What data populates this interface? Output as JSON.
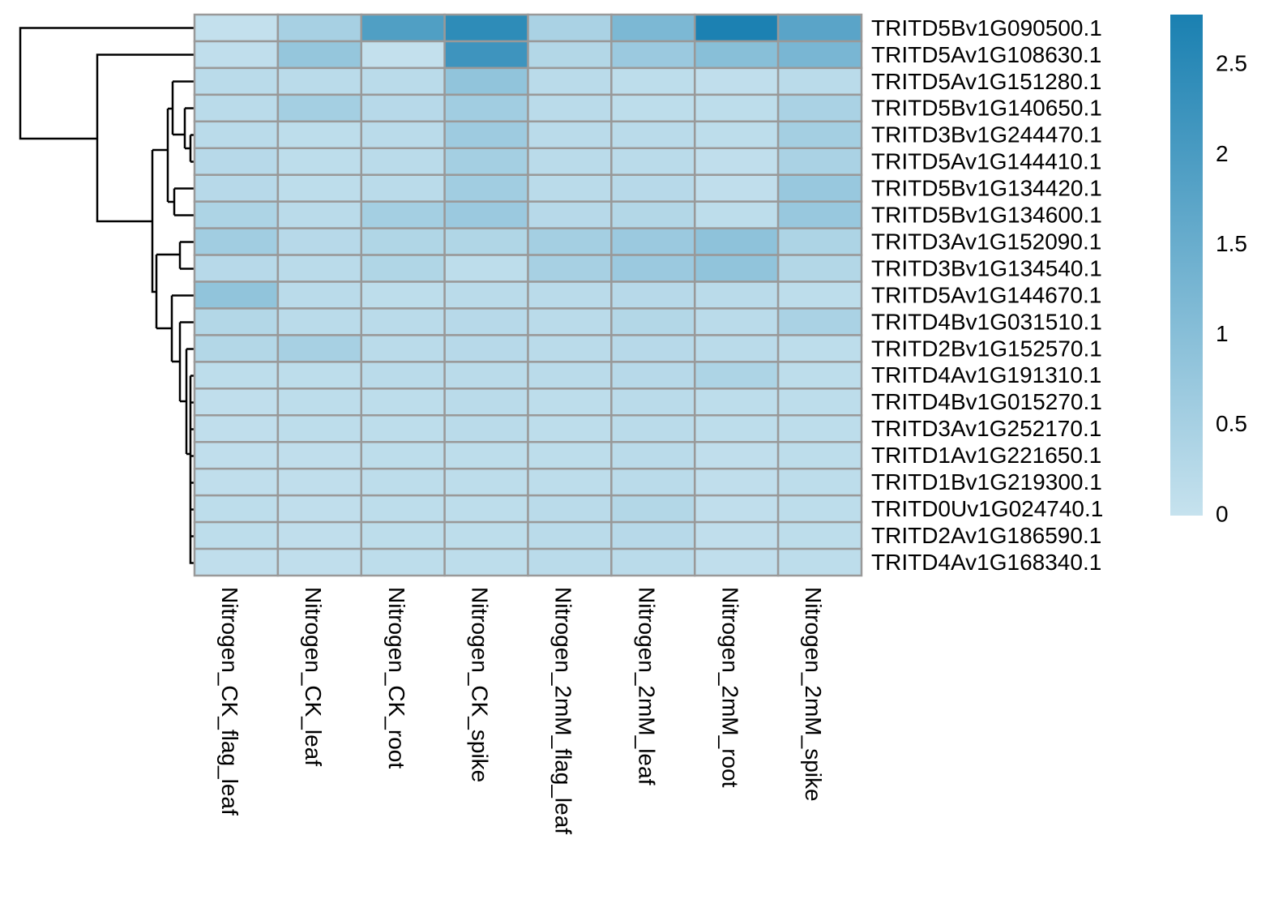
{
  "chart_data": {
    "type": "heatmap",
    "rows": [
      "TRITD5Bv1G090500.1",
      "TRITD5Av1G108630.1",
      "TRITD5Av1G151280.1",
      "TRITD5Bv1G140650.1",
      "TRITD3Bv1G244470.1",
      "TRITD5Av1G144410.1",
      "TRITD5Bv1G134420.1",
      "TRITD5Bv1G134600.1",
      "TRITD3Av1G152090.1",
      "TRITD3Bv1G134540.1",
      "TRITD5Av1G144670.1",
      "TRITD4Bv1G031510.1",
      "TRITD2Bv1G152570.1",
      "TRITD4Av1G191310.1",
      "TRITD4Bv1G015270.1",
      "TRITD3Av1G252170.1",
      "TRITD1Av1G221650.1",
      "TRITD1Bv1G219300.1",
      "TRITD0Uv1G024740.1",
      "TRITD2Av1G186590.1",
      "TRITD4Av1G168340.1"
    ],
    "columns": [
      "Nitrogen_CK_flag_leaf",
      "Nitrogen_CK_leaf",
      "Nitrogen_CK_root",
      "Nitrogen_CK_spike",
      "Nitrogen_2mM_flag_leaf",
      "Nitrogen_2mM_leaf",
      "Nitrogen_2mM_root",
      "Nitrogen_2mM_spike"
    ],
    "values": [
      [
        0.05,
        0.5,
        1.9,
        2.45,
        0.45,
        1.2,
        2.75,
        1.75
      ],
      [
        0.1,
        0.8,
        0.05,
        2.2,
        0.3,
        0.7,
        1.0,
        1.25
      ],
      [
        0.2,
        0.2,
        0.2,
        0.85,
        0.2,
        0.15,
        0.1,
        0.2
      ],
      [
        0.2,
        0.55,
        0.25,
        0.6,
        0.2,
        0.15,
        0.15,
        0.45
      ],
      [
        0.2,
        0.15,
        0.2,
        0.65,
        0.2,
        0.2,
        0.15,
        0.55
      ],
      [
        0.25,
        0.15,
        0.2,
        0.55,
        0.2,
        0.2,
        0.1,
        0.45
      ],
      [
        0.25,
        0.15,
        0.2,
        0.6,
        0.2,
        0.25,
        0.1,
        0.75
      ],
      [
        0.4,
        0.2,
        0.55,
        0.7,
        0.25,
        0.3,
        0.15,
        0.75
      ],
      [
        0.6,
        0.25,
        0.35,
        0.35,
        0.55,
        0.7,
        0.9,
        0.4
      ],
      [
        0.25,
        0.2,
        0.35,
        0.15,
        0.5,
        0.7,
        0.85,
        0.3
      ],
      [
        0.85,
        0.2,
        0.15,
        0.2,
        0.2,
        0.25,
        0.2,
        0.15
      ],
      [
        0.3,
        0.2,
        0.2,
        0.25,
        0.2,
        0.3,
        0.2,
        0.45
      ],
      [
        0.3,
        0.5,
        0.2,
        0.25,
        0.2,
        0.25,
        0.2,
        0.15
      ],
      [
        0.15,
        0.15,
        0.2,
        0.2,
        0.2,
        0.25,
        0.4,
        0.15
      ],
      [
        0.1,
        0.15,
        0.15,
        0.2,
        0.15,
        0.2,
        0.15,
        0.15
      ],
      [
        0.1,
        0.15,
        0.15,
        0.2,
        0.15,
        0.2,
        0.15,
        0.15
      ],
      [
        0.1,
        0.1,
        0.15,
        0.15,
        0.15,
        0.2,
        0.1,
        0.15
      ],
      [
        0.1,
        0.1,
        0.15,
        0.15,
        0.15,
        0.2,
        0.1,
        0.15
      ],
      [
        0.15,
        0.1,
        0.15,
        0.15,
        0.2,
        0.3,
        0.1,
        0.15
      ],
      [
        0.15,
        0.1,
        0.15,
        0.15,
        0.2,
        0.25,
        0.1,
        0.15
      ],
      [
        0.1,
        0.1,
        0.15,
        0.15,
        0.2,
        0.2,
        0.1,
        0.15
      ]
    ],
    "colors": [
      "#c6e2ee",
      "#1a80b1"
    ],
    "zlim": [
      0,
      2.78
    ],
    "zticks": [
      0,
      0.5,
      1,
      1.5,
      2,
      2.5
    ]
  }
}
